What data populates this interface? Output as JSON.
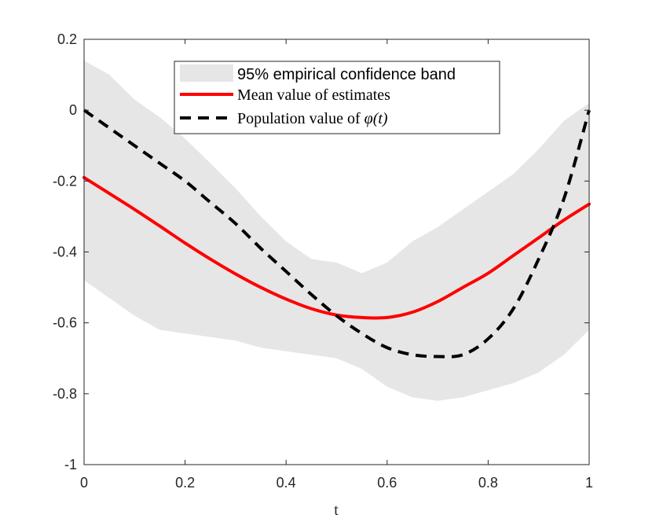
{
  "chart_data": {
    "type": "line",
    "title": "",
    "xlabel": "t",
    "ylabel": "",
    "xlim": [
      0,
      1
    ],
    "ylim": [
      -1,
      0.2
    ],
    "xticks": [
      "0",
      "0.2",
      "0.4",
      "0.6",
      "0.8",
      "1"
    ],
    "yticks": [
      "0.2",
      "0",
      "-0.2",
      "-0.4",
      "-0.6",
      "-0.8",
      "-1"
    ],
    "grid": false,
    "legend_position": "top-center",
    "x": [
      0,
      0.05,
      0.1,
      0.15,
      0.2,
      0.25,
      0.3,
      0.35,
      0.4,
      0.45,
      0.5,
      0.55,
      0.6,
      0.65,
      0.7,
      0.75,
      0.8,
      0.85,
      0.9,
      0.95,
      1
    ],
    "band": {
      "name": "95% empirical confidence band",
      "color": "#e6e6e6",
      "upper": [
        0.14,
        0.1,
        0.03,
        -0.02,
        -0.08,
        -0.15,
        -0.22,
        -0.3,
        -0.37,
        -0.42,
        -0.43,
        -0.46,
        -0.43,
        -0.37,
        -0.33,
        -0.28,
        -0.23,
        -0.18,
        -0.11,
        -0.03,
        0.02
      ],
      "lower": [
        -0.48,
        -0.53,
        -0.58,
        -0.62,
        -0.63,
        -0.64,
        -0.65,
        -0.67,
        -0.68,
        -0.69,
        -0.7,
        -0.73,
        -0.78,
        -0.81,
        -0.82,
        -0.81,
        -0.79,
        -0.77,
        -0.74,
        -0.69,
        -0.62
      ]
    },
    "series": [
      {
        "name": "Mean value of estimates",
        "color": "#ff0000",
        "style": "solid",
        "values": [
          -0.19,
          -0.235,
          -0.28,
          -0.327,
          -0.375,
          -0.42,
          -0.462,
          -0.5,
          -0.533,
          -0.56,
          -0.578,
          -0.585,
          -0.585,
          -0.57,
          -0.54,
          -0.5,
          -0.46,
          -0.41,
          -0.36,
          -0.31,
          -0.265
        ]
      },
      {
        "name": "Population value of φ(t)",
        "color": "#000000",
        "style": "dashed",
        "values": [
          0,
          -0.05,
          -0.1,
          -0.15,
          -0.2,
          -0.26,
          -0.32,
          -0.39,
          -0.455,
          -0.52,
          -0.58,
          -0.63,
          -0.67,
          -0.69,
          -0.695,
          -0.69,
          -0.645,
          -0.56,
          -0.42,
          -0.25,
          0
        ]
      }
    ]
  },
  "legend": {
    "band_label": "95% empirical confidence band",
    "mean_label": "Mean value of estimates",
    "population_prefix": "Population value of ",
    "population_symbol": "φ(t)"
  }
}
